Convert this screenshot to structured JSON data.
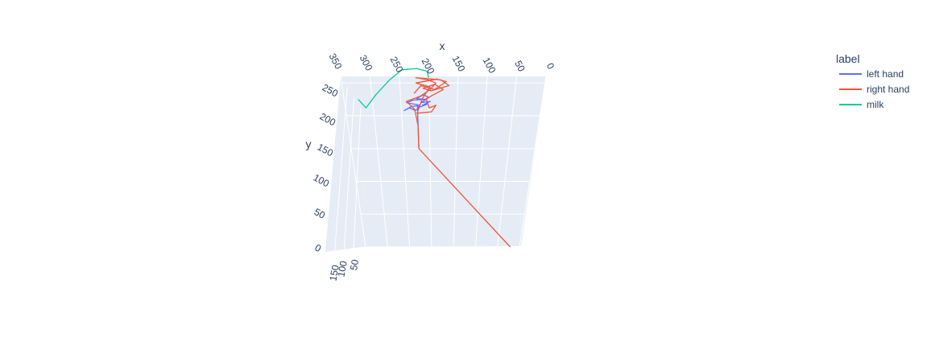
{
  "chart_data": {
    "type": "line",
    "subtype": "3d-line",
    "axes": {
      "x": {
        "title": "x",
        "ticks": [
          "350",
          "300",
          "250",
          "200",
          "150",
          "100",
          "50",
          "0"
        ],
        "range": [
          0,
          350
        ]
      },
      "y": {
        "title": "y",
        "ticks": [
          "250",
          "200",
          "150",
          "100",
          "50",
          "0"
        ],
        "range": [
          0,
          260
        ]
      },
      "z": {
        "title": "",
        "ticks": [
          "150",
          "100",
          "50"
        ],
        "range": [
          0,
          160
        ]
      }
    },
    "legend": {
      "title": "label",
      "position": "top-right",
      "items": [
        {
          "name": "left hand",
          "color": "#636efa"
        },
        {
          "name": "right hand",
          "color": "#EF553B"
        },
        {
          "name": "milk",
          "color": "#00cc96"
        }
      ]
    },
    "colors": {
      "background": "#e5ecf6",
      "grid": "#ffffff",
      "text": "#2a3f5f"
    },
    "series": [
      {
        "name": "left hand",
        "color": "#636efa",
        "points": [
          [
            221,
            150,
            0
          ],
          [
            221,
            198,
            0
          ],
          [
            221,
            205,
            0
          ],
          [
            221,
            215,
            0
          ],
          [
            218,
            212,
            0
          ],
          [
            225,
            208,
            0
          ],
          [
            235,
            212,
            0
          ],
          [
            245,
            208,
            0
          ],
          [
            232,
            214,
            0
          ],
          [
            216,
            216,
            0
          ],
          [
            240,
            220,
            0
          ],
          [
            228,
            224,
            0
          ],
          [
            205,
            225,
            0
          ],
          [
            222,
            226,
            0
          ],
          [
            210,
            232,
            0
          ],
          [
            200,
            228,
            0
          ],
          [
            214,
            220,
            0
          ],
          [
            198,
            222,
            0
          ],
          [
            212,
            216,
            0
          ],
          [
            202,
            218,
            0
          ],
          [
            221,
            212,
            0
          ],
          [
            221,
            175,
            0
          ]
        ]
      },
      {
        "name": "right hand",
        "color": "#EF553B",
        "points": [
          [
            21,
            0,
            0
          ],
          [
            221,
            150,
            0
          ],
          [
            221,
            185,
            0
          ],
          [
            226,
            210,
            0
          ],
          [
            240,
            222,
            0
          ],
          [
            215,
            230,
            0
          ],
          [
            198,
            240,
            0
          ],
          [
            188,
            250,
            0
          ],
          [
            202,
            255,
            0
          ],
          [
            222,
            258,
            0
          ],
          [
            180,
            255,
            0
          ],
          [
            165,
            246,
            0
          ],
          [
            196,
            238,
            0
          ],
          [
            210,
            242,
            0
          ],
          [
            190,
            248,
            0
          ],
          [
            175,
            240,
            0
          ],
          [
            205,
            226,
            0
          ],
          [
            200,
            212,
            0
          ],
          [
            188,
            216,
            0
          ],
          [
            196,
            206,
            0
          ],
          [
            222,
            204,
            0
          ],
          [
            212,
            226,
            0
          ],
          [
            198,
            244,
            0
          ],
          [
            222,
            250,
            0
          ],
          [
            186,
            256,
            0
          ],
          [
            170,
            252,
            0
          ],
          [
            190,
            240,
            0
          ],
          [
            214,
            246,
            0
          ],
          [
            226,
            234,
            0
          ]
        ]
      },
      {
        "name": "milk",
        "color": "#00cc96",
        "points": [
          [
            325,
            225,
            0
          ],
          [
            313,
            212,
            0
          ],
          [
            293,
            232,
            0
          ],
          [
            268,
            254,
            0
          ],
          [
            245,
            270,
            0
          ],
          [
            220,
            272,
            0
          ],
          [
            203,
            268,
            0
          ],
          [
            200,
            258,
            0
          ]
        ]
      }
    ]
  }
}
